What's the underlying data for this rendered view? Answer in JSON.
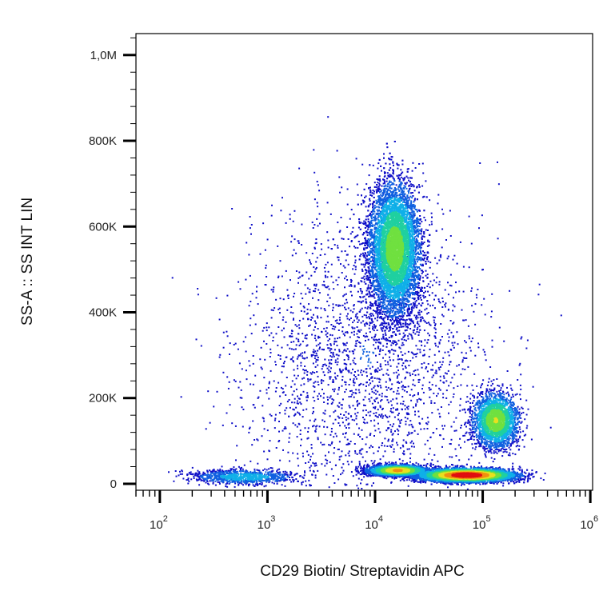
{
  "chart_data": {
    "type": "scatter",
    "subtype": "flow-cytometry-density-dot-plot",
    "xlabel": "CD29 Biotin/ Streptavidin APC",
    "ylabel": "SS-A :: SS INT LIN",
    "x_scale": "log",
    "y_scale": "linear",
    "xlim": [
      60,
      1050000
    ],
    "ylim": [
      -15000,
      1050000
    ],
    "x_ticks": [
      {
        "value": 100,
        "label": "10",
        "exp": "2"
      },
      {
        "value": 1000,
        "label": "10",
        "exp": "3"
      },
      {
        "value": 10000,
        "label": "10",
        "exp": "4"
      },
      {
        "value": 100000,
        "label": "10",
        "exp": "5"
      },
      {
        "value": 1000000,
        "label": "10",
        "exp": "6"
      }
    ],
    "y_ticks": [
      {
        "value": 0,
        "label": "0"
      },
      {
        "value": 200000,
        "label": "200K"
      },
      {
        "value": 400000,
        "label": "400K"
      },
      {
        "value": 600000,
        "label": "600K"
      },
      {
        "value": 800000,
        "label": "800K"
      },
      {
        "value": 1000000,
        "label": "1,0M"
      }
    ],
    "grid": false,
    "legend": "none",
    "color_scale": [
      "#1010c8",
      "#1060e0",
      "#10b0e8",
      "#20d0a0",
      "#70e040",
      "#e8e020",
      "#f09010",
      "#e01010"
    ],
    "populations": [
      {
        "x_center": 15000,
        "y_center": 550000,
        "x_spread_decades": 0.17,
        "y_spread": 110000,
        "count": 9000,
        "peak_density": 0.55
      },
      {
        "x_center": 130000,
        "y_center": 150000,
        "x_spread_decades": 0.15,
        "y_spread": 45000,
        "count": 2500,
        "peak_density": 0.6
      },
      {
        "x_center": 70000,
        "y_center": 22000,
        "x_spread_decades": 0.32,
        "y_spread": 11000,
        "count": 7500,
        "peak_density": 1.0
      },
      {
        "x_center": 16000,
        "y_center": 33000,
        "x_spread_decades": 0.2,
        "y_spread": 9000,
        "count": 3000,
        "peak_density": 0.75
      },
      {
        "x_center": 600,
        "y_center": 18000,
        "x_spread_decades": 0.35,
        "y_spread": 12000,
        "count": 900,
        "peak_density": 0.3
      },
      {
        "x_center": 8000,
        "y_center": 300000,
        "x_spread_decades": 0.8,
        "y_spread": 250000,
        "count": 2500,
        "peak_density": 0.1
      }
    ]
  }
}
